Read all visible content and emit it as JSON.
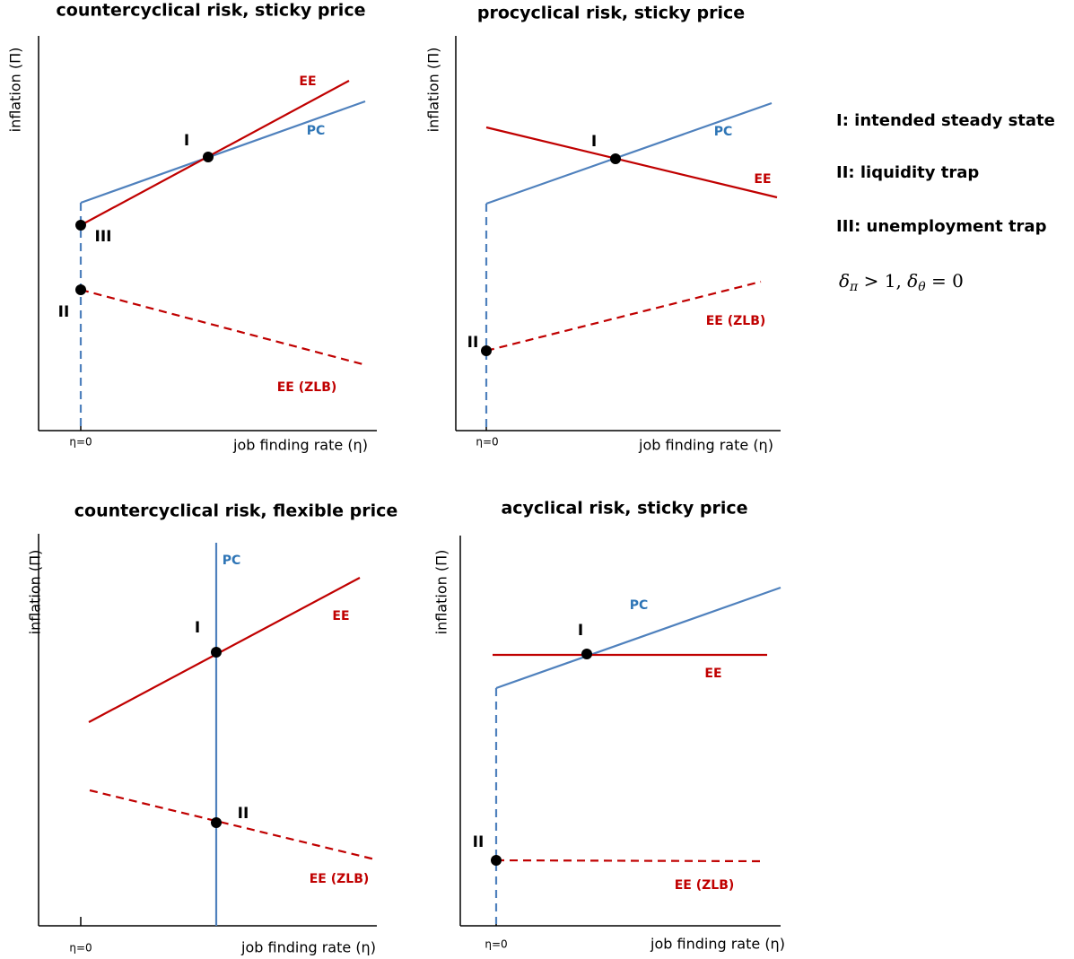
{
  "panels": [
    {
      "title": "countercyclical risk, sticky price",
      "y_label": "inflation  (Π)",
      "x_label": "job finding rate (η)",
      "x_tick": "η=0",
      "curves": [
        "EE",
        "PC",
        "EE (ZLB)"
      ],
      "points": [
        "I",
        "III",
        "II"
      ]
    },
    {
      "title": "procyclical risk, sticky price",
      "y_label": "inflation  (Π)",
      "x_label": "job finding rate (η)",
      "x_tick": "η=0",
      "curves": [
        "PC",
        "EE",
        "EE (ZLB)"
      ],
      "points": [
        "I",
        "II"
      ]
    },
    {
      "title": "countercyclical risk, flexible price",
      "y_label": "inflation  (Π)",
      "x_label": "job finding rate (η)",
      "x_tick": "η=0",
      "curves": [
        "PC",
        "EE",
        "EE (ZLB)"
      ],
      "points": [
        "I",
        "II"
      ]
    },
    {
      "title": "acyclical risk, sticky price",
      "y_label": "inflation (Π)",
      "x_label": "job finding rate (η)",
      "x_tick": "η=0",
      "curves": [
        "PC",
        "EE",
        "EE (ZLB)"
      ],
      "points": [
        "I",
        "II"
      ]
    }
  ],
  "legend": [
    "I: intended steady state",
    "II: liquidity trap",
    "III: unemployment trap"
  ],
  "formula": {
    "parts": [
      "δ",
      "π",
      " > 1, ",
      "δ",
      "θ",
      " = 0"
    ]
  }
}
